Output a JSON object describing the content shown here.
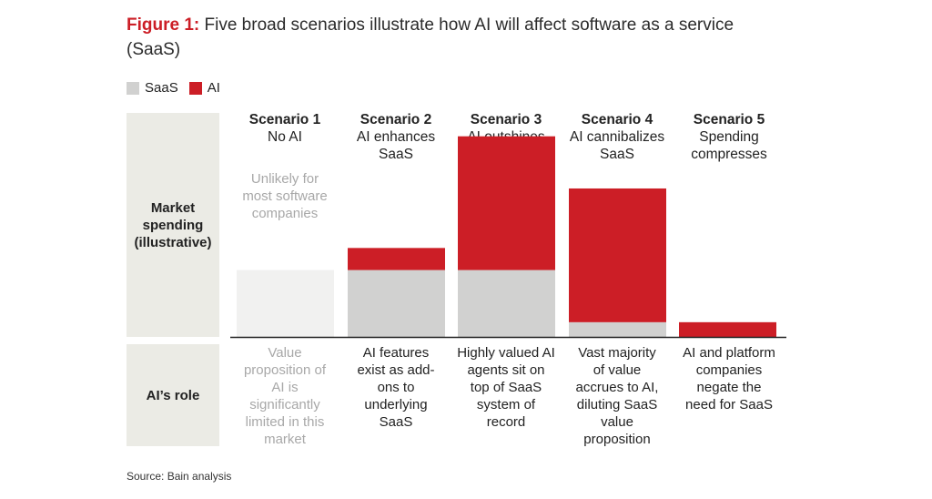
{
  "title_prefix": "Figure 1:",
  "title_text": " Five broad scenarios illustrate how AI will affect software as a service (SaaS)",
  "legend": [
    {
      "label": "SaaS",
      "color": "#d1d1d0"
    },
    {
      "label": "AI",
      "color": "#cc1e26"
    }
  ],
  "row_labels": {
    "market": "Market spending (illustrative)",
    "role": "AI’s role"
  },
  "scenario1_note": "Unlikely for most software companies",
  "colors": {
    "saas": "#d1d1d0",
    "ai": "#cc1e26",
    "saas_faded": "#f1f1f0"
  },
  "scenarios": [
    {
      "number": "Scenario 1",
      "name": "No AI",
      "role": "Value proposition of AI is significantly limited in this market"
    },
    {
      "number": "Scenario 2",
      "name": "AI enhances SaaS",
      "role": "AI features exist as add-ons to underlying SaaS"
    },
    {
      "number": "Scenario 3",
      "name": "AI outshines SaaS",
      "role": "Highly valued AI agents sit on top of SaaS system of record"
    },
    {
      "number": "Scenario 4",
      "name": "AI cannibalizes SaaS",
      "role": "Vast majority of value accrues to AI, diluting SaaS value proposition"
    },
    {
      "number": "Scenario 5",
      "name": "Spending compresses",
      "role": "AI and platform companies negate the need for SaaS"
    }
  ],
  "chart_data": {
    "type": "bar",
    "stacked": true,
    "categories": [
      "Scenario 1",
      "Scenario 2",
      "Scenario 3",
      "Scenario 4",
      "Scenario 5"
    ],
    "series": [
      {
        "name": "SaaS",
        "values": [
          1.0,
          1.0,
          1.0,
          0.22,
          0
        ]
      },
      {
        "name": "AI",
        "values": [
          0,
          0.33,
          2.0,
          2.0,
          0.22
        ]
      }
    ],
    "ylim": [
      0,
      3.2
    ]
  },
  "source": "Source: Bain analysis"
}
